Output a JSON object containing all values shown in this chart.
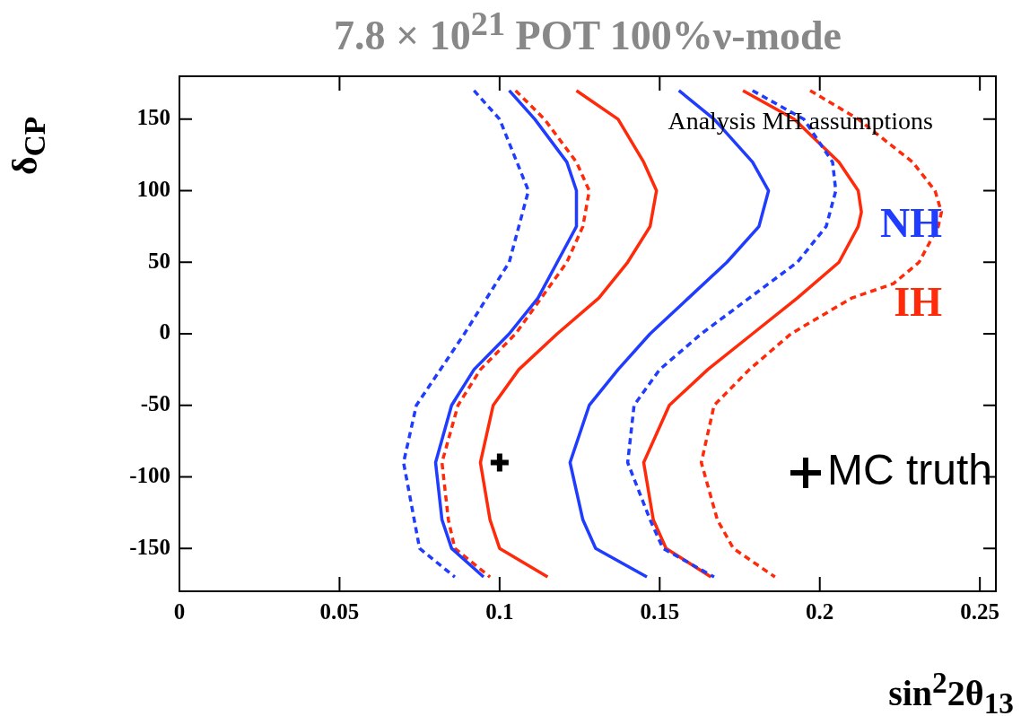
{
  "chart_data": {
    "type": "line",
    "title": "7.8 × 10$^{21}$ POT 100%ν-mode",
    "xlabel": "sin$^{2}$2θ$_{13}$",
    "ylabel": "δ$_{CP}$",
    "legend_title": "Analysis MH assumptions",
    "legend": "right",
    "grid": false,
    "xlim": [
      0,
      0.255
    ],
    "ylim": [
      -180,
      180
    ],
    "xticks": [
      0,
      0.05,
      0.1,
      0.15,
      0.2,
      0.25
    ],
    "yticks": [
      -150,
      -100,
      -50,
      0,
      50,
      100,
      150
    ],
    "series": [
      {
        "color": "#1f3cff",
        "line_style": "dashed",
        "x": [
          0.092,
          0.1,
          0.109,
          0.103,
          0.089,
          0.074,
          0.07,
          0.075,
          0.086
        ],
        "values": [
          170,
          150,
          100,
          50,
          0,
          -50,
          -90,
          -150,
          -170
        ]
      },
      {
        "name": "NH",
        "color": "#1f3cff",
        "line_style": "solid",
        "x": [
          0.103,
          0.111,
          0.121,
          0.124,
          0.124,
          0.118,
          0.112,
          0.103,
          0.092,
          0.085,
          0.08,
          0.082,
          0.085,
          0.095
        ],
        "values": [
          170,
          150,
          120,
          100,
          75,
          50,
          25,
          0,
          -25,
          -50,
          -90,
          -130,
          -150,
          -170
        ]
      },
      {
        "color": "#ff2a0a",
        "line_style": "dashed",
        "x": [
          0.105,
          0.114,
          0.124,
          0.128,
          0.126,
          0.121,
          0.113,
          0.105,
          0.094,
          0.087,
          0.082,
          0.084,
          0.086,
          0.097
        ],
        "values": [
          170,
          150,
          120,
          100,
          75,
          50,
          25,
          0,
          -25,
          -50,
          -90,
          -130,
          -150,
          -170
        ]
      },
      {
        "name": "IH",
        "color": "#ff2a0a",
        "line_style": "solid",
        "x": [
          0.124,
          0.137,
          0.145,
          0.149,
          0.147,
          0.14,
          0.131,
          0.118,
          0.106,
          0.098,
          0.094,
          0.097,
          0.1,
          0.115
        ],
        "values": [
          170,
          150,
          120,
          100,
          75,
          50,
          25,
          0,
          -25,
          -50,
          -90,
          -130,
          -150,
          -170
        ]
      },
      {
        "color": "#1f3cff",
        "line_style": "solid",
        "x": [
          0.156,
          0.167,
          0.179,
          0.184,
          0.181,
          0.171,
          0.159,
          0.147,
          0.137,
          0.128,
          0.122,
          0.126,
          0.13,
          0.146
        ],
        "values": [
          170,
          150,
          120,
          100,
          75,
          50,
          25,
          0,
          -25,
          -50,
          -90,
          -130,
          -150,
          -170
        ]
      },
      {
        "color": "#1f3cff",
        "line_style": "dashed",
        "x": [
          0.179,
          0.195,
          0.204,
          0.205,
          0.202,
          0.193,
          0.178,
          0.163,
          0.15,
          0.142,
          0.14,
          0.147,
          0.151,
          0.167
        ],
        "values": [
          170,
          150,
          120,
          100,
          75,
          50,
          25,
          0,
          -25,
          -50,
          -90,
          -130,
          -150,
          -170
        ]
      },
      {
        "color": "#ff2a0a",
        "line_style": "solid",
        "x": [
          0.176,
          0.192,
          0.206,
          0.212,
          0.213,
          0.212,
          0.206,
          0.193,
          0.179,
          0.165,
          0.153,
          0.145,
          0.148,
          0.152,
          0.166
        ],
        "values": [
          170,
          150,
          120,
          100,
          85,
          75,
          50,
          25,
          0,
          -25,
          -50,
          -90,
          -130,
          -150,
          -170
        ]
      },
      {
        "color": "#ff2a0a",
        "line_style": "dashed",
        "x": [
          0.197,
          0.212,
          0.229,
          0.236,
          0.238,
          0.237,
          0.231,
          0.223,
          0.21,
          0.191,
          0.178,
          0.167,
          0.163,
          0.168,
          0.173,
          0.186
        ],
        "values": [
          170,
          150,
          120,
          100,
          85,
          75,
          50,
          35,
          25,
          0,
          -25,
          -50,
          -90,
          -130,
          -150,
          -170
        ]
      },
      {
        "type": "scatter",
        "name": "MC truth",
        "color": "#000000",
        "marker": "cross",
        "x": [
          0.1
        ],
        "values": [
          -90
        ]
      }
    ]
  }
}
